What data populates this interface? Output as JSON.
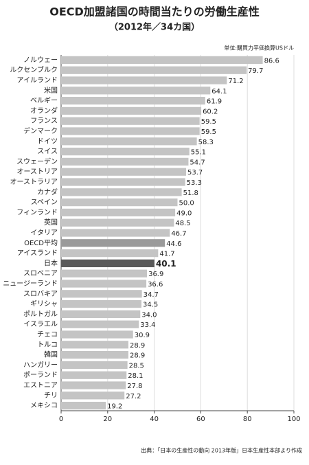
{
  "chart_data": {
    "type": "hbar",
    "title": "OECD加盟諸国の時間当たりの労働生産性",
    "subtitle": "（2012年／34カ国）",
    "unit_note": "単位:購買力平価換算USドル",
    "source": "出典：「日本の生産性の動向 2013年版」日本生産性本部より作成",
    "categories": [
      "ノルウェー",
      "ルクセンブルク",
      "アイルランド",
      "米国",
      "ベルギー",
      "オランダ",
      "フランス",
      "デンマーク",
      "ドイツ",
      "スイス",
      "スウェーデン",
      "オーストリア",
      "オーストラリア",
      "カナダ",
      "スペイン",
      "フィンランド",
      "英国",
      "イタリア",
      "OECD平均",
      "アイスランド",
      "日本",
      "スロベニア",
      "ニュージーランド",
      "スロバキア",
      "ギリシャ",
      "ポルトガル",
      "イスラエル",
      "チェコ",
      "トルコ",
      "韓国",
      "ハンガリー",
      "ポーランド",
      "エストニア",
      "チリ",
      "メキシコ"
    ],
    "values": [
      86.6,
      79.7,
      71.2,
      64.1,
      61.9,
      60.2,
      59.5,
      59.5,
      58.3,
      55.1,
      54.7,
      53.7,
      53.3,
      51.8,
      50.0,
      49.0,
      48.5,
      46.7,
      44.6,
      41.7,
      40.1,
      36.9,
      36.6,
      34.7,
      34.5,
      34.0,
      33.4,
      30.9,
      28.9,
      28.9,
      28.5,
      28.1,
      27.8,
      27.2,
      19.2
    ],
    "value_labels": [
      "86.6",
      "79.7",
      "71.2",
      "64.1",
      "61.9",
      "60.2",
      "59.5",
      "59.5",
      "58.3",
      "55.1",
      "54.7",
      "53.7",
      "53.3",
      "51.8",
      "50.0",
      "49.0",
      "48.5",
      "46.7",
      "44.6",
      "41.7",
      "40.1",
      "36.9",
      "36.6",
      "34.7",
      "34.5",
      "34.0",
      "33.4",
      "30.9",
      "28.9",
      "28.9",
      "28.5",
      "28.1",
      "27.8",
      "27.2",
      "19.2"
    ],
    "color": "#c4c4c4",
    "highlights": [
      {
        "category": "OECD平均",
        "color": "#9a9a9a"
      },
      {
        "category": "日本",
        "color": "#5a5a5a"
      }
    ],
    "xlim": [
      0,
      100
    ],
    "xticks": [
      0,
      20,
      40,
      60,
      80,
      100
    ],
    "grid": true
  }
}
